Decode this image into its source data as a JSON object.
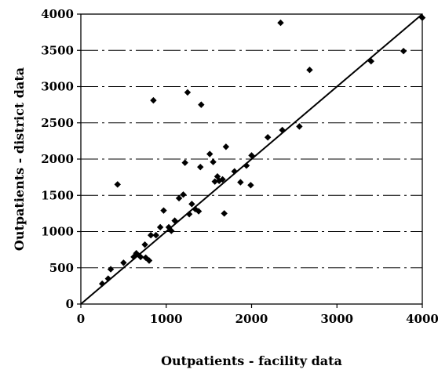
{
  "chart_data": {
    "type": "scatter",
    "xlabel": "Outpatients - facility data",
    "ylabel": "Outpatients - district data",
    "xlim": [
      0,
      4000
    ],
    "ylim": [
      0,
      4000
    ],
    "xticks": [
      0,
      1000,
      2000,
      3000,
      4000
    ],
    "yticks": [
      0,
      500,
      1000,
      1500,
      2000,
      2500,
      3000,
      3500,
      4000
    ],
    "grid": "horizontal dash-dot",
    "legend": "none",
    "reference_line": {
      "from": [
        0,
        0
      ],
      "to": [
        4000,
        4000
      ]
    },
    "colors": {
      "points": "#000000",
      "line": "#000000",
      "grid": "#000000"
    },
    "points": [
      [
        250,
        280
      ],
      [
        320,
        350
      ],
      [
        350,
        480
      ],
      [
        430,
        1650
      ],
      [
        500,
        570
      ],
      [
        620,
        650
      ],
      [
        650,
        700
      ],
      [
        700,
        650
      ],
      [
        760,
        640
      ],
      [
        750,
        820
      ],
      [
        800,
        600
      ],
      [
        820,
        950
      ],
      [
        850,
        2810
      ],
      [
        880,
        950
      ],
      [
        930,
        1060
      ],
      [
        970,
        1290
      ],
      [
        1030,
        1060
      ],
      [
        1060,
        1010
      ],
      [
        1100,
        1150
      ],
      [
        1150,
        1460
      ],
      [
        1200,
        1510
      ],
      [
        1220,
        1950
      ],
      [
        1250,
        2920
      ],
      [
        1270,
        1240
      ],
      [
        1300,
        1380
      ],
      [
        1340,
        1310
      ],
      [
        1380,
        1280
      ],
      [
        1410,
        2750
      ],
      [
        1400,
        1890
      ],
      [
        1510,
        2070
      ],
      [
        1550,
        1960
      ],
      [
        1570,
        1690
      ],
      [
        1600,
        1760
      ],
      [
        1620,
        1700
      ],
      [
        1660,
        1720
      ],
      [
        1680,
        1250
      ],
      [
        1700,
        2170
      ],
      [
        1800,
        1830
      ],
      [
        1870,
        1680
      ],
      [
        1940,
        1910
      ],
      [
        1990,
        1640
      ],
      [
        2000,
        2050
      ],
      [
        2190,
        2300
      ],
      [
        2340,
        3880
      ],
      [
        2360,
        2400
      ],
      [
        2560,
        2450
      ],
      [
        2680,
        3230
      ],
      [
        3400,
        3350
      ],
      [
        3780,
        3490
      ],
      [
        4000,
        3950
      ]
    ]
  }
}
